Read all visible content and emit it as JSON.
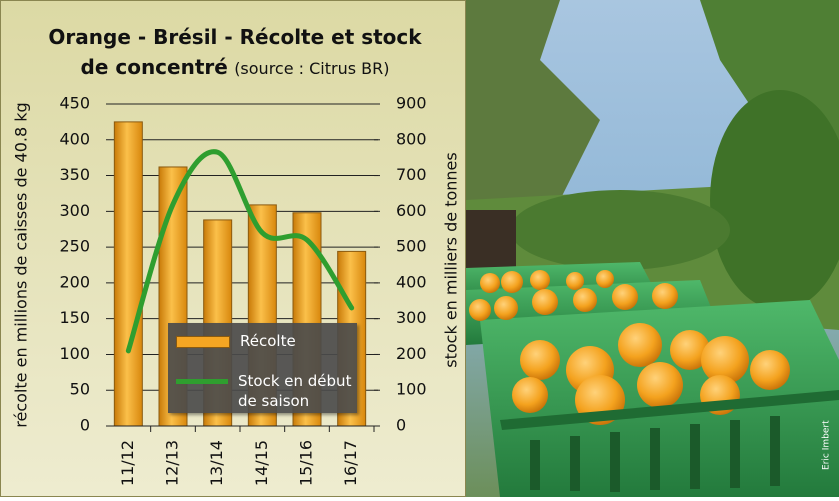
{
  "chart_data": {
    "type": "bar_line",
    "title": "Orange - Brésil - Récolte et stock de concentré",
    "subtitle": "(source : Citrus BR)",
    "ylabel": "récolte en millions de caisses de 40.8 kg",
    "y2label": "stock en milliers de tonnes",
    "categories": [
      "11/12",
      "12/13",
      "13/14",
      "14/15",
      "15/16",
      "16/17"
    ],
    "series": [
      {
        "name": "Récolte",
        "type": "bar",
        "color": "#f5a623",
        "values": [
          425,
          362,
          288,
          309,
          298,
          244
        ]
      },
      {
        "name": "Stock en début de saison",
        "type": "line",
        "axis": "y2",
        "color": "#2f9e2f",
        "values": [
          210,
          620,
          765,
          540,
          520,
          330
        ]
      }
    ],
    "ylim": [
      0,
      450
    ],
    "yticks": [
      0,
      50,
      100,
      150,
      200,
      250,
      300,
      350,
      400,
      450
    ],
    "y2lim": [
      0,
      900
    ],
    "y2ticks": [
      0,
      100,
      200,
      300,
      400,
      500,
      600,
      700,
      800,
      900
    ],
    "grid": true,
    "legend": "bottom-center"
  },
  "photo": {
    "credit": "Eric Imbert"
  }
}
